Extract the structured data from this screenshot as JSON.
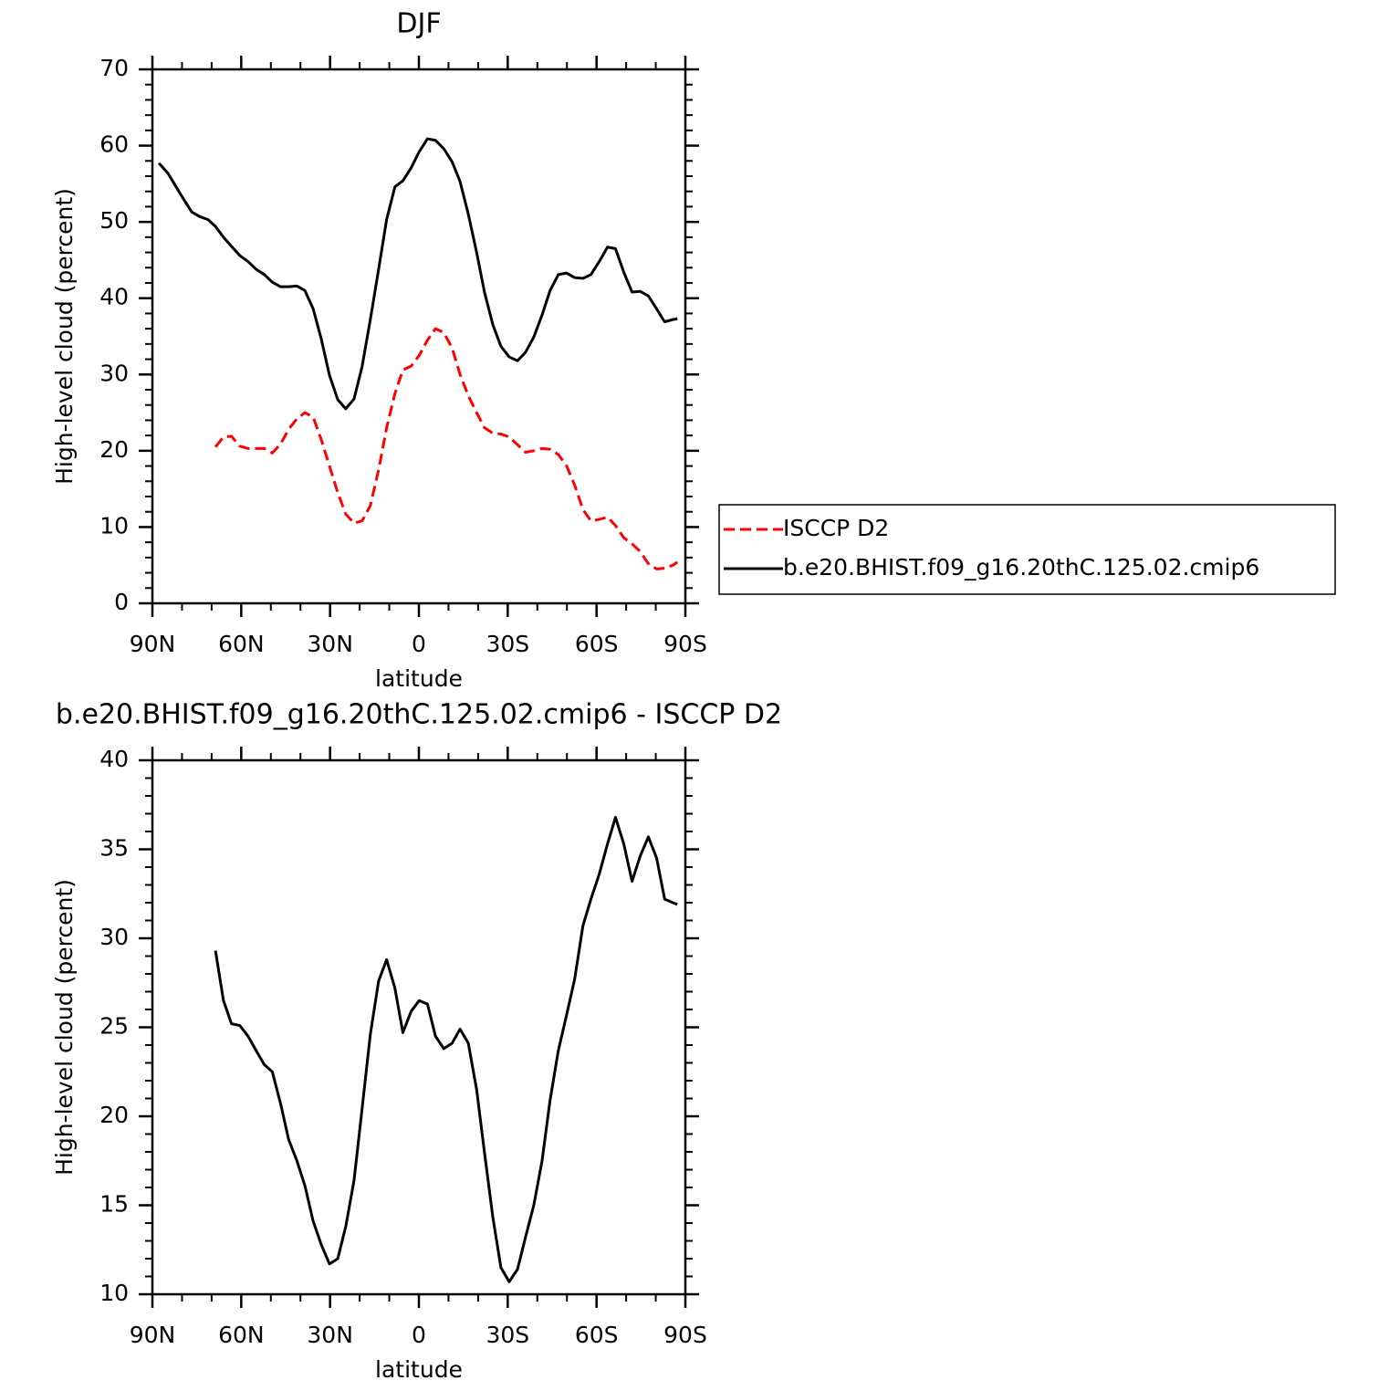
{
  "chart_data": [
    {
      "type": "line",
      "title": "DJF",
      "xlabel": "latitude",
      "ylabel": "High-level cloud (percent)",
      "x": [
        87.8,
        84.8,
        82,
        79.5,
        76.7,
        74,
        71.2,
        68.7,
        66,
        63.3,
        60.5,
        57.7,
        55,
        52.2,
        49.5,
        46.7,
        44,
        41.2,
        38.5,
        35.7,
        33,
        30.2,
        27.4,
        24.7,
        21.9,
        19.2,
        16.4,
        13.6,
        10.9,
        8.1,
        5.4,
        2.6,
        -0.1,
        -2.9,
        -5.6,
        -8.4,
        -11.2,
        -13.9,
        -16.7,
        -19.5,
        -22.2,
        -25,
        -27.7,
        -30.5,
        -33.3,
        -36,
        -38.8,
        -41.6,
        -44.3,
        -47.1,
        -49.9,
        -52.6,
        -55.4,
        -58.1,
        -60.9,
        -63.7,
        -66.4,
        -69.2,
        -72,
        -74.7,
        -77.5,
        -80.3,
        -83,
        -85.8,
        -87.3
      ],
      "series": [
        {
          "name": "ISCCP D2",
          "color": "#ff0000",
          "line_style": "dashed",
          "values": [
            null,
            null,
            null,
            null,
            null,
            null,
            null,
            20.5,
            21.8,
            21.9,
            20.6,
            20.3,
            20.3,
            20.3,
            19.7,
            20.9,
            22.8,
            24.2,
            25,
            24.4,
            21.5,
            18,
            14.5,
            11.7,
            10.5,
            10.8,
            12.8,
            17.5,
            23,
            27.5,
            30.6,
            31.1,
            32.5,
            34.5,
            36,
            35.5,
            33.5,
            30,
            27.2,
            25,
            23,
            22.3,
            22.2,
            21.8,
            20.8,
            19.8,
            20,
            20.3,
            20.2,
            19.5,
            18,
            15.5,
            12.3,
            10.8,
            11,
            11.3,
            10.2,
            8.6,
            7.8,
            6.8,
            5.2,
            4.5,
            4.6,
            5,
            5.4
          ]
        },
        {
          "name": "b.e20.BHIST.f09_g16.20thC.125.02.cmip6",
          "color": "#000000",
          "line_style": "solid",
          "values": [
            57.7,
            56.4,
            54.6,
            53,
            51.3,
            50.7,
            50.3,
            49.4,
            48,
            46.8,
            45.6,
            44.8,
            43.8,
            43.1,
            42.1,
            41.5,
            41.5,
            41.6,
            41,
            38.6,
            34.7,
            29.9,
            26.7,
            25.5,
            26.8,
            31,
            37.2,
            43.8,
            50.3,
            54.6,
            55.4,
            57.1,
            59.2,
            60.9,
            60.7,
            59.6,
            57.9,
            55.3,
            51,
            46,
            40.7,
            36.5,
            33.7,
            32.3,
            31.8,
            32.9,
            34.9,
            37.8,
            41,
            43.1,
            43.3,
            42.7,
            42.6,
            43.1,
            44.8,
            46.7,
            46.5,
            43.4,
            40.8,
            40.9,
            40.3,
            38.6,
            36.9,
            37.2,
            37.3
          ]
        }
      ],
      "xlim": [
        90,
        -90
      ],
      "xticks": [
        {
          "value": 90,
          "label": "90N"
        },
        {
          "value": 60,
          "label": "60N"
        },
        {
          "value": 30,
          "label": "30N"
        },
        0,
        {
          "value": -30,
          "label": "30S"
        },
        {
          "value": -60,
          "label": "60S"
        },
        {
          "value": -90,
          "label": "90S"
        }
      ],
      "ylim": [
        0,
        70
      ],
      "yticks": [
        0,
        10,
        20,
        30,
        40,
        50,
        60,
        70
      ],
      "legend": "right"
    },
    {
      "type": "line",
      "title": "b.e20.BHIST.f09_g16.20thC.125.02.cmip6 - ISCCP D2",
      "xlabel": "latitude",
      "ylabel": "High-level cloud (percent)",
      "x": [
        68.7,
        66,
        63.3,
        60.5,
        57.7,
        55,
        52.2,
        49.5,
        46.7,
        44,
        41.2,
        38.5,
        35.7,
        33,
        30.2,
        27.4,
        24.7,
        21.9,
        19.2,
        16.4,
        13.6,
        10.9,
        8.1,
        5.4,
        2.6,
        -0.1,
        -2.9,
        -5.6,
        -8.4,
        -11.2,
        -13.9,
        -16.7,
        -19.5,
        -22.2,
        -25,
        -27.7,
        -30.5,
        -33.3,
        -36,
        -38.8,
        -41.6,
        -44.3,
        -47.1,
        -49.9,
        -52.6,
        -55.4,
        -58.1,
        -60.9,
        -63.7,
        -66.4,
        -69.2,
        -72,
        -74.7,
        -77.5,
        -80.3,
        -83,
        -85.8,
        -87.3
      ],
      "series": [
        {
          "color": "#000000",
          "line_style": "solid",
          "values": [
            29.3,
            26.5,
            25.2,
            25.1,
            24.5,
            23.7,
            22.9,
            22.5,
            20.7,
            18.7,
            17.5,
            16.1,
            14.1,
            12.8,
            11.7,
            12,
            13.8,
            16.4,
            20.4,
            24.6,
            27.6,
            28.8,
            27.2,
            24.7,
            25.9,
            26.5,
            26.3,
            24.5,
            23.8,
            24.1,
            24.9,
            24.1,
            21.5,
            17.9,
            14.3,
            11.5,
            10.7,
            11.4,
            13.2,
            15,
            17.5,
            20.9,
            23.7,
            25.7,
            27.7,
            30.7,
            32.2,
            33.6,
            35.3,
            36.8,
            35.3,
            33.2,
            34.6,
            35.7,
            34.5,
            32.2,
            32,
            31.9
          ]
        }
      ],
      "xlim": [
        90,
        -90
      ],
      "xticks": [
        {
          "value": 90,
          "label": "90N"
        },
        {
          "value": 60,
          "label": "60N"
        },
        {
          "value": 30,
          "label": "30N"
        },
        0,
        {
          "value": -30,
          "label": "30S"
        },
        {
          "value": -60,
          "label": "60S"
        },
        {
          "value": -90,
          "label": "90S"
        }
      ],
      "ylim": [
        10,
        40
      ],
      "yticks": [
        10,
        15,
        20,
        25,
        30,
        35,
        40
      ]
    }
  ]
}
